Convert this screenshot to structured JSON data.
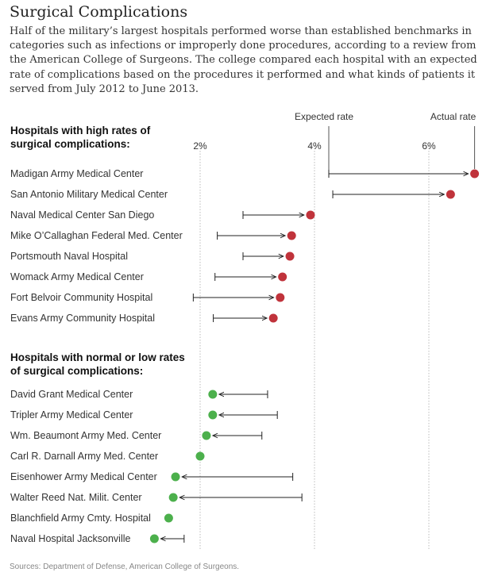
{
  "title": "Surgical Complications",
  "subtitle": "Half of the military’s largest hospitals performed worse than established benchmarks in categories such as infections or improperly done procedures, according to a review from the American College of Surgeons. The college compared each hospital with an expected rate of complications based on the procedures it performed and what kinds of patients it served from July 2012 to June 2013.",
  "source": "Sources: Department of Defense, American College of Surgeons.",
  "colors": {
    "high": "#c0333b",
    "normal": "#4cb04c",
    "line": "#222222",
    "grid": "#bbbbbb"
  },
  "chart_data": {
    "type": "dumbbell",
    "legend": {
      "expected": "Expected rate",
      "actual": "Actual rate"
    },
    "x_ticks": [
      {
        "value": 2,
        "label": "2%"
      },
      {
        "value": 4,
        "label": "4%"
      },
      {
        "value": 6,
        "label": "6%"
      }
    ],
    "groups": [
      {
        "title_lines": [
          "Hospitals with high rates of",
          "surgical complications:"
        ],
        "status": "high",
        "hospitals": [
          {
            "name": "Madigan Army Medical Center",
            "expected": 4.25,
            "actual": 6.8
          },
          {
            "name": "San Antonio Military Medical Center",
            "expected": 4.32,
            "actual": 6.38
          },
          {
            "name": "Naval Medical Center San Diego",
            "expected": 2.75,
            "actual": 3.93
          },
          {
            "name": "Mike O’Callaghan Federal Med. Center",
            "expected": 2.3,
            "actual": 3.6
          },
          {
            "name": "Portsmouth Naval Hospital",
            "expected": 2.75,
            "actual": 3.57
          },
          {
            "name": "Womack Army Medical Center",
            "expected": 2.26,
            "actual": 3.44
          },
          {
            "name": "Fort Belvoir Community Hospital",
            "expected": 1.88,
            "actual": 3.4
          },
          {
            "name": "Evans Army Community Hospital",
            "expected": 2.23,
            "actual": 3.28
          }
        ]
      },
      {
        "title_lines": [
          "Hospitals with normal or low rates",
          "of surgical complications:"
        ],
        "status": "normal",
        "hospitals": [
          {
            "name": "David Grant Medical Center",
            "expected": 3.18,
            "actual": 2.22
          },
          {
            "name": "Tripler Army Medical Center",
            "expected": 3.35,
            "actual": 2.22
          },
          {
            "name": "Wm. Beaumont Army Med. Center",
            "expected": 3.08,
            "actual": 2.11
          },
          {
            "name": "Carl R. Darnall Army Med. Center",
            "expected": 2.0,
            "actual": 2.0
          },
          {
            "name": "Eisenhower Army Medical Center",
            "expected": 3.62,
            "actual": 1.57
          },
          {
            "name": "Walter Reed Nat. Milit. Center",
            "expected": 3.78,
            "actual": 1.53
          },
          {
            "name": "Blanchfield Army Cmty. Hospital",
            "expected": 1.45,
            "actual": 1.45
          },
          {
            "name": "Naval Hospital Jacksonville",
            "expected": 1.72,
            "actual": 1.2
          }
        ]
      }
    ]
  }
}
